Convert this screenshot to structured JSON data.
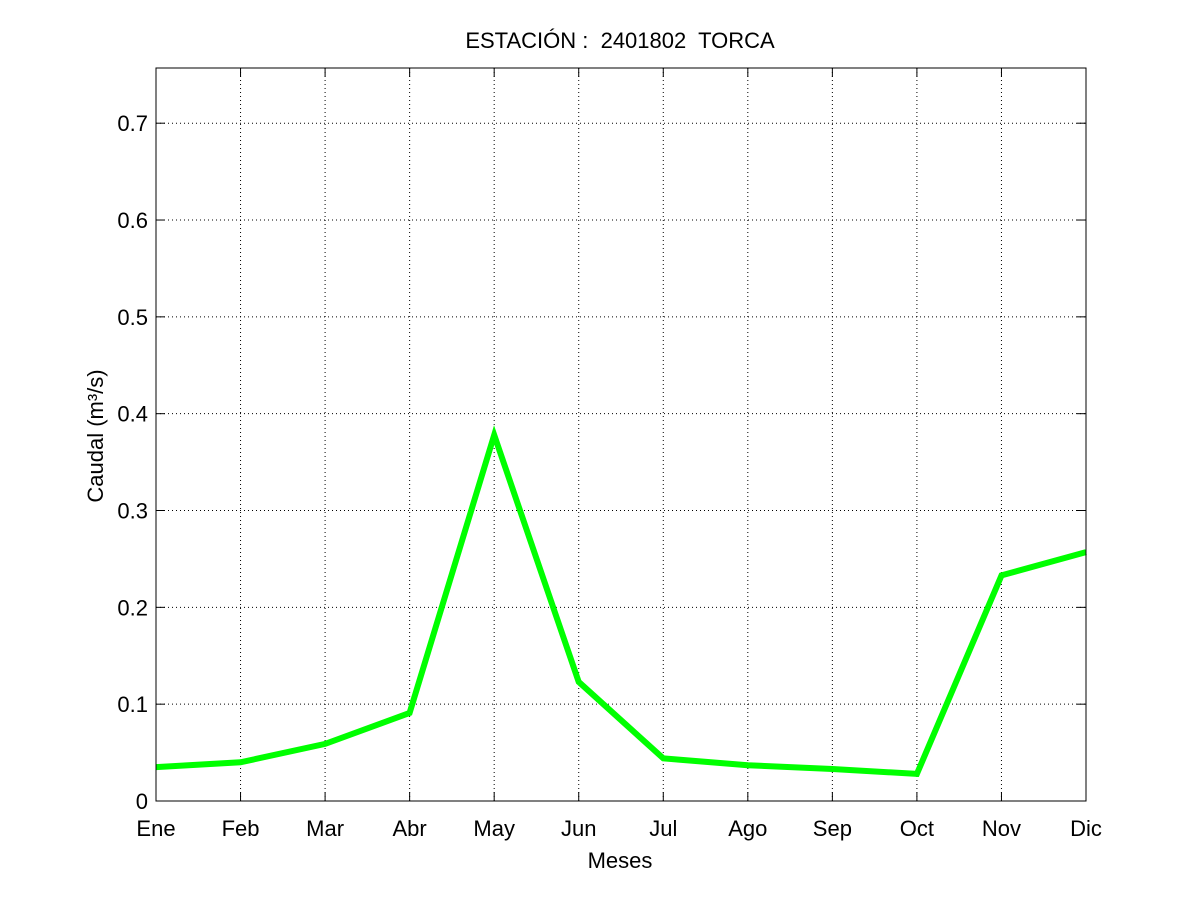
{
  "chart_data": {
    "type": "line",
    "title": "ESTACIÓN :  2401802  TORCA",
    "xlabel": "Meses",
    "ylabel": "Caudal (m³/s)",
    "categories": [
      "Ene",
      "Feb",
      "Mar",
      "Abr",
      "May",
      "Jun",
      "Jul",
      "Ago",
      "Sep",
      "Oct",
      "Nov",
      "Dic"
    ],
    "series": [
      {
        "values": [
          0.035,
          0.04,
          0.059,
          0.091,
          0.378,
          0.123,
          0.044,
          0.037,
          0.033,
          0.028,
          0.233,
          0.257
        ],
        "color": "#00ff00"
      }
    ],
    "ylim": [
      0,
      0.757
    ],
    "yticks": [
      0,
      0.1,
      0.2,
      0.3,
      0.4,
      0.5,
      0.6,
      0.7
    ],
    "ytick_labels": [
      "0",
      "0.1",
      "0.2",
      "0.3",
      "0.4",
      "0.5",
      "0.6",
      "0.7"
    ],
    "grid": true,
    "grid_style": "dotted",
    "line_color": "#00ff00"
  }
}
